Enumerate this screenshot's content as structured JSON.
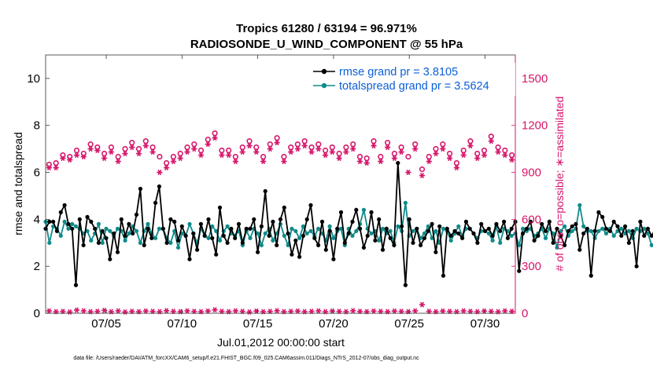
{
  "chart_data": {
    "type": "line",
    "title_line1": "Tropics 61280 / 63194 = 96.971%",
    "title_line2": "RADIOSONDE_U_WIND_COMPONENT @ 55 hPa",
    "xlabel": "Jul.01,2012 00:00:00 start",
    "ylabel_left": "rmse and totalspread",
    "ylabel_right": "# of obs: o=possible; ∗=assimilated",
    "footnote": "data file: /Users/raeder/DAI/ATM_forcXX/CAM6_setup/f.e21.FHIST_BGC.f09_025.CAM6assim.011/Diags_NTrS_2012-07/obs_diag_output.nc",
    "xlim": [
      1,
      32
    ],
    "ylim_left": [
      0,
      11
    ],
    "ylim_right": [
      0,
      1650
    ],
    "left_ticks": [
      0,
      2,
      4,
      6,
      8,
      10
    ],
    "right_ticks": [
      0,
      300,
      600,
      900,
      1200,
      1500
    ],
    "x_ticks": [
      {
        "value": 5,
        "label": "07/05"
      },
      {
        "value": 10,
        "label": "07/10"
      },
      {
        "value": 15,
        "label": "07/15"
      },
      {
        "value": 20,
        "label": "07/20"
      },
      {
        "value": 25,
        "label": "07/25"
      },
      {
        "value": 30,
        "label": "07/30"
      }
    ],
    "x_start": 1.0,
    "x_step": 0.25,
    "colors": {
      "rmse": "#000000",
      "spread": "#0f8a8a",
      "obs": "#d6156a",
      "legend_text": "#0b5fd7",
      "right_axis": "#d6156a"
    },
    "series": [
      {
        "name": "rmse grand pr = 3.8105",
        "key": "rmse",
        "values": [
          3.6,
          3.9,
          3.9,
          3.5,
          4.3,
          4.6,
          3.8,
          3.6,
          1.2,
          4.0,
          2.9,
          4.1,
          3.9,
          3.6,
          3.0,
          3.5,
          3.2,
          2.3,
          3.4,
          2.6,
          4.0,
          3.3,
          3.8,
          3.4,
          4.2,
          5.3,
          2.9,
          3.6,
          3.2,
          4.7,
          5.4,
          3.6,
          3.0,
          4.0,
          3.9,
          3.1,
          3.7,
          3.3,
          2.3,
          3.4,
          2.7,
          3.8,
          3.3,
          4.0,
          3.2,
          2.5,
          4.5,
          3.3,
          3.0,
          3.6,
          3.2,
          3.8,
          3.0,
          3.6,
          3.6,
          4.0,
          2.6,
          3.7,
          5.2,
          3.3,
          3.9,
          2.9,
          4.0,
          4.5,
          3.4,
          2.5,
          3.1,
          2.4,
          3.3,
          4.0,
          4.6,
          3.2,
          2.9,
          3.9,
          2.7,
          3.5,
          2.3,
          3.6,
          4.3,
          3.0,
          3.4,
          3.9,
          4.4,
          3.6,
          2.8,
          3.3,
          4.3,
          3.1,
          4.0,
          2.7,
          3.6,
          3.2,
          2.9,
          6.4,
          3.7,
          1.2,
          4.0,
          3.0,
          3.6,
          2.9,
          3.2,
          3.5,
          3.8,
          2.6,
          3.7,
          1.6,
          3.6,
          3.3,
          3.5,
          3.4,
          3.2,
          3.9,
          3.6,
          3.4,
          3.0,
          3.8,
          3.5,
          3.6,
          3.3,
          3.8,
          3.5,
          3.9,
          3.2,
          3.6,
          3.9,
          1.8,
          3.4,
          3.6,
          3.9,
          3.1,
          3.3,
          3.8,
          3.5,
          3.9,
          3.0,
          3.6,
          3.3,
          2.9,
          3.5,
          3.7,
          3.8,
          2.7,
          3.4,
          3.6,
          1.6,
          3.5,
          4.3,
          4.1,
          3.6,
          3.5,
          3.9,
          3.7,
          3.3,
          3.7,
          3.0,
          3.5,
          2.0,
          3.9,
          3.3,
          3.6,
          3.3,
          3.6,
          3.8,
          3.1,
          2.8
        ]
      },
      {
        "name": "totalspread grand pr = 3.5624",
        "key": "spread",
        "values": [
          3.9,
          3.0,
          3.7,
          3.6,
          3.3,
          3.9,
          3.6,
          3.8,
          3.7,
          3.6,
          3.4,
          3.5,
          3.1,
          3.4,
          3.8,
          3.0,
          3.6,
          3.5,
          3.3,
          3.6,
          3.5,
          3.1,
          3.4,
          3.7,
          3.5,
          3.0,
          3.5,
          3.8,
          3.4,
          3.2,
          3.6,
          3.6,
          3.2,
          3.0,
          3.5,
          2.8,
          3.4,
          3.3,
          3.8,
          3.4,
          3.0,
          3.6,
          3.3,
          3.2,
          3.7,
          3.5,
          3.1,
          3.5,
          3.7,
          3.4,
          3.3,
          3.5,
          2.9,
          3.5,
          3.2,
          3.6,
          3.4,
          2.9,
          3.4,
          3.6,
          3.1,
          3.4,
          3.8,
          3.3,
          2.9,
          3.6,
          3.5,
          3.2,
          3.7,
          3.4,
          3.5,
          3.3,
          3.6,
          3.4,
          3.1,
          3.7,
          3.2,
          3.5,
          3.6,
          2.9,
          3.6,
          3.3,
          3.5,
          3.8,
          4.4,
          3.6,
          3.4,
          3.5,
          3.1,
          3.6,
          3.4,
          3.5,
          3.0,
          3.7,
          3.5,
          4.7,
          3.3,
          3.5,
          3.6,
          3.2,
          3.4,
          3.7,
          3.2,
          3.5,
          3.0,
          3.6,
          3.5,
          3.1,
          3.4,
          3.7,
          3.3,
          3.6,
          3.6,
          3.4,
          3.2,
          3.5,
          3.5,
          3.4,
          3.1,
          3.7,
          3.0,
          3.6,
          3.5,
          3.3,
          3.4,
          2.9,
          3.6,
          3.5,
          3.6,
          3.3,
          3.4,
          3.6,
          3.2,
          3.6,
          3.4,
          2.8,
          3.5,
          3.7,
          3.3,
          3.5,
          3.6,
          4.6,
          3.7,
          3.5,
          3.5,
          3.2,
          3.5,
          3.6,
          3.4,
          3.6,
          3.3,
          3.5,
          3.6,
          3.4,
          3.5,
          3.2,
          3.6,
          3.5,
          3.6,
          3.4,
          2.9
        ]
      },
      {
        "name": "possible",
        "key": "possible",
        "axis": "right",
        "values": [
          950,
          960,
          1010,
          1000,
          1040,
          1020,
          1080,
          1060,
          1020,
          1060,
          1000,
          1050,
          1090,
          1050,
          1100,
          1060,
          1000,
          960,
          1000,
          1020,
          1060,
          1080,
          1040,
          1110,
          1150,
          1040,
          1040,
          1000,
          1060,
          1100,
          1060,
          1000,
          1080,
          1120,
          1000,
          1060,
          1080,
          1100,
          1060,
          1080,
          1040,
          1060,
          1020,
          1060,
          1080,
          1000,
          990,
          1100,
          1000,
          1090,
          1020,
          1060,
          1000,
          1080,
          920,
          1000,
          1050,
          1080,
          1020,
          960,
          1040,
          1100,
          1020,
          1040,
          1130,
          1060,
          1040,
          1010
        ]
      },
      {
        "name": "assimilated",
        "key": "assimilated",
        "axis": "right",
        "values": [
          930,
          930,
          990,
          980,
          1010,
          1000,
          1050,
          1040,
          990,
          1030,
          970,
          1020,
          1060,
          1020,
          1070,
          1030,
          900,
          930,
          970,
          990,
          1030,
          1050,
          1010,
          1080,
          1120,
          1010,
          1010,
          970,
          1030,
          1070,
          1030,
          970,
          1050,
          1090,
          970,
          1030,
          1050,
          1070,
          1030,
          1050,
          1010,
          1030,
          990,
          1030,
          1050,
          970,
          960,
          1070,
          970,
          1060,
          990,
          1030,
          900,
          1050,
          880,
          970,
          1020,
          1050,
          990,
          930,
          1010,
          1070,
          990,
          1010,
          1100,
          1030,
          1010,
          980
        ]
      },
      {
        "name": "zero-level possible",
        "key": "bottom",
        "axis": "right",
        "values": [
          15,
          10,
          12,
          8,
          20,
          15,
          10,
          12,
          18,
          10,
          15,
          8,
          12,
          10,
          14,
          12,
          10,
          16,
          12,
          10,
          15,
          12,
          10,
          14,
          22,
          12,
          10,
          15,
          12,
          8,
          14,
          10,
          12,
          16,
          10,
          12,
          14,
          10,
          12,
          15,
          10,
          14,
          12,
          10,
          16,
          12,
          10,
          14,
          12,
          10,
          14,
          12,
          10,
          15,
          55,
          12,
          10,
          14,
          12,
          10,
          15,
          12,
          10,
          14,
          12,
          10,
          15,
          12
        ]
      }
    ],
    "legend": [
      {
        "key": "rmse",
        "label": "rmse grand pr = 3.8105"
      },
      {
        "key": "spread",
        "label": "totalspread grand pr = 3.5624"
      }
    ]
  }
}
